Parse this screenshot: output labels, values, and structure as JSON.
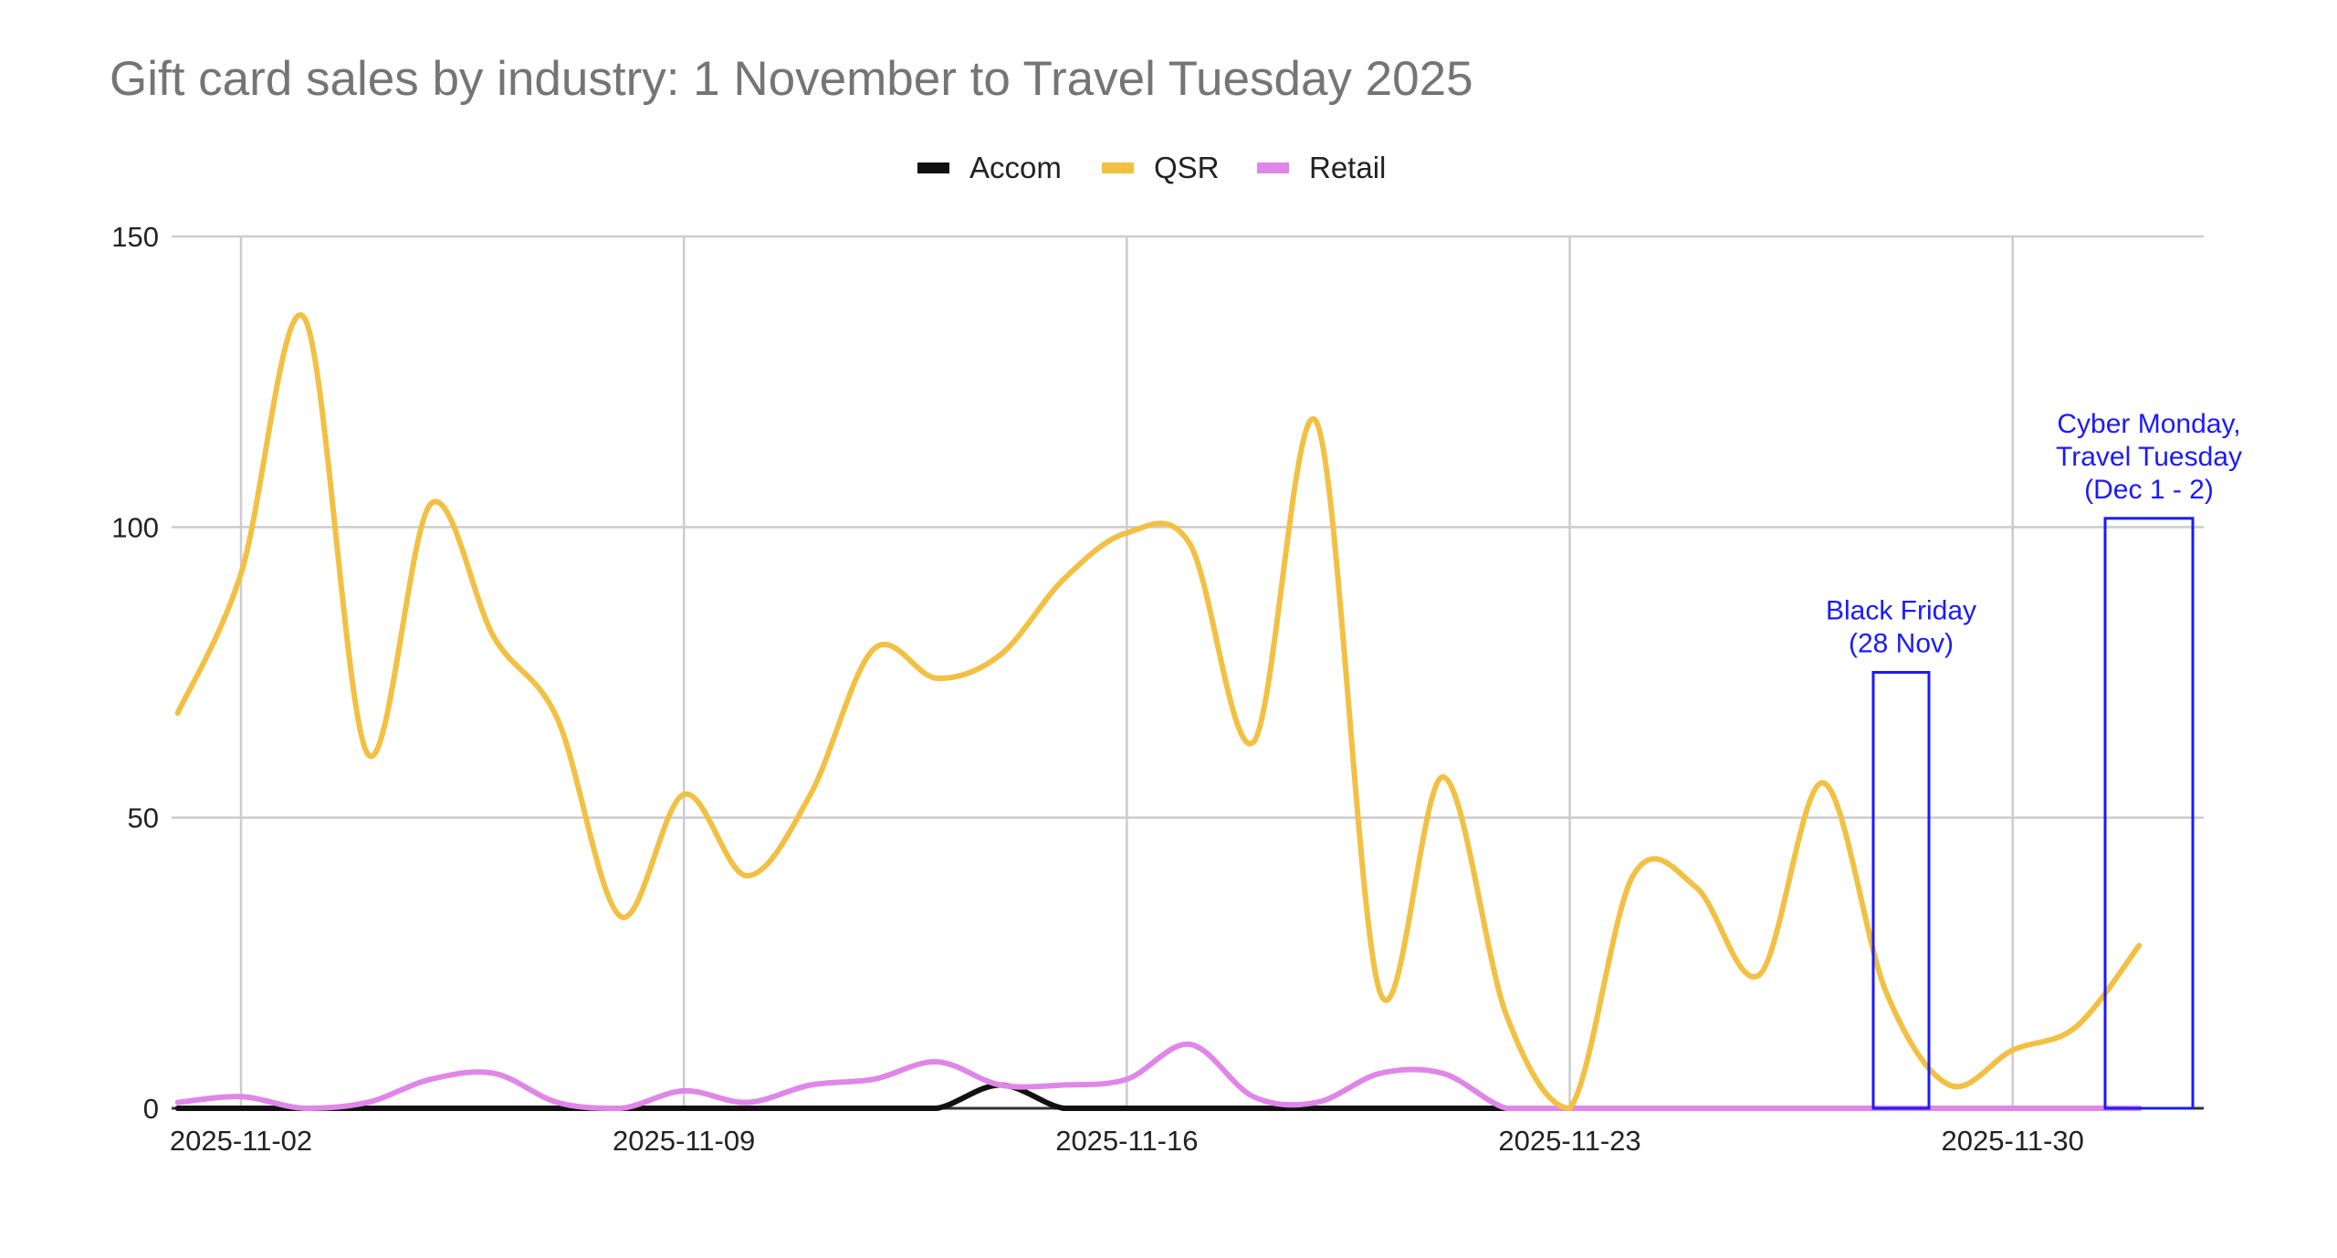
{
  "chart_data": {
    "type": "line",
    "title": "Gift card sales by industry: 1 November to Travel Tuesday 2025",
    "xlabel": "",
    "ylabel": "",
    "ylim": [
      0,
      150
    ],
    "yticks": [
      0,
      50,
      100,
      150
    ],
    "grid": true,
    "legend_position": "top",
    "xtick_labels": [
      "2025-11-02",
      "2025-11-09",
      "2025-11-16",
      "2025-11-23",
      "2025-11-30"
    ],
    "x": [
      "2025-11-01",
      "2025-11-02",
      "2025-11-03",
      "2025-11-04",
      "2025-11-05",
      "2025-11-06",
      "2025-11-07",
      "2025-11-08",
      "2025-11-09",
      "2025-11-10",
      "2025-11-11",
      "2025-11-12",
      "2025-11-13",
      "2025-11-14",
      "2025-11-15",
      "2025-11-16",
      "2025-11-17",
      "2025-11-18",
      "2025-11-19",
      "2025-11-20",
      "2025-11-21",
      "2025-11-22",
      "2025-11-23",
      "2025-11-24",
      "2025-11-25",
      "2025-11-26",
      "2025-11-27",
      "2025-11-28",
      "2025-11-29",
      "2025-11-30",
      "2025-12-01",
      "2025-12-02"
    ],
    "series": [
      {
        "name": "Accom",
        "color": "#111111",
        "values": [
          0,
          0,
          0,
          0,
          0,
          0,
          0,
          0,
          0,
          0,
          0,
          0,
          0,
          4,
          0,
          0,
          0,
          0,
          0,
          0,
          0,
          0,
          0,
          0,
          0,
          0,
          0,
          0,
          0,
          0,
          0,
          0
        ]
      },
      {
        "name": "QSR",
        "color": "#f2c043",
        "values": [
          68,
          92,
          136,
          61,
          104,
          81,
          67,
          33,
          54,
          40,
          54,
          79,
          74,
          78,
          91,
          99,
          97,
          63,
          118,
          20,
          57,
          16,
          0,
          40,
          38,
          23,
          56,
          20,
          4,
          10,
          14,
          28
        ]
      },
      {
        "name": "Retail",
        "color": "#e086e8",
        "values": [
          1,
          2,
          0,
          1,
          5,
          6,
          1,
          0,
          3,
          1,
          4,
          5,
          8,
          4,
          4,
          5,
          11,
          2,
          1,
          6,
          6,
          0,
          0,
          0,
          0,
          0,
          0,
          0,
          0,
          0,
          0,
          0
        ]
      }
    ],
    "annotations": [
      {
        "label_lines": [
          "Black Friday",
          "(28 Nov)"
        ],
        "x_start": "2025-11-27.6",
        "x_end": "2025-11-28.5",
        "y_top": 75,
        "color": "#1a1aff"
      },
      {
        "label_lines": [
          "Cyber Monday,",
          "Travel Tuesday",
          "(Dec 1 -  2)"
        ],
        "x_start": "2025-11-30.4",
        "x_end": "2025-12-02",
        "y_top": 101.5,
        "color": "#1a1aff"
      }
    ]
  },
  "legend": [
    {
      "label": "Accom",
      "color": "#111111"
    },
    {
      "label": "QSR",
      "color": "#f2c043"
    },
    {
      "label": "Retail",
      "color": "#e086e8"
    }
  ]
}
